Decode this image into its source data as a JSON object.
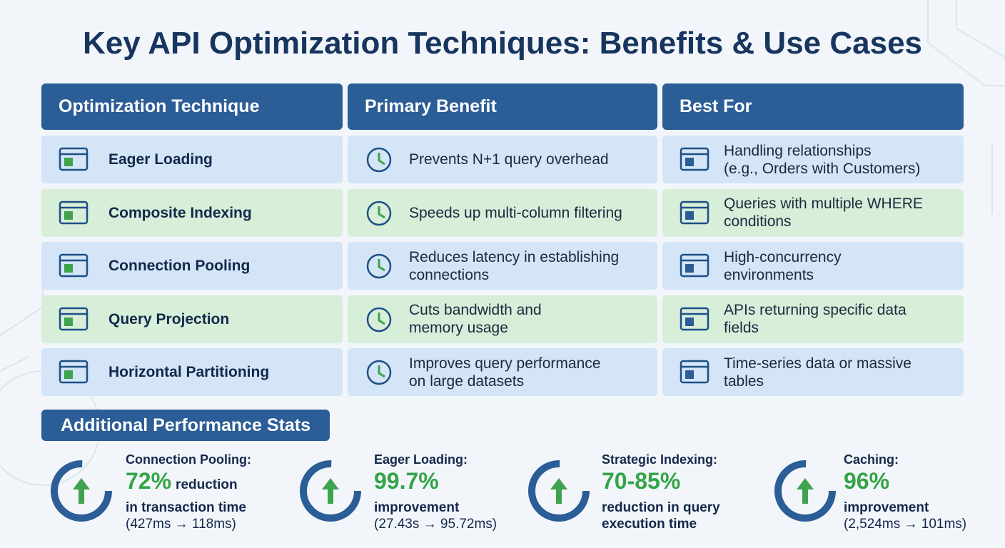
{
  "title": "Key API Optimization Techniques: Benefits & Use Cases",
  "table": {
    "headers": [
      "Optimization Technique",
      "Primary Benefit",
      "Best For"
    ],
    "rows": [
      {
        "technique": "Eager Loading",
        "benefit": [
          "Prevents N+1 query overhead"
        ],
        "best_for": [
          "Handling relationships",
          "(e.g., Orders with Customers)"
        ]
      },
      {
        "technique": "Composite Indexing",
        "benefit": [
          "Speeds up multi-column filtering"
        ],
        "best_for": [
          "Queries with multiple WHERE",
          "conditions"
        ]
      },
      {
        "technique": "Connection Pooling",
        "benefit": [
          "Reduces latency in establishing",
          "connections"
        ],
        "best_for": [
          "High-concurrency",
          "environments"
        ]
      },
      {
        "technique": "Query Projection",
        "benefit": [
          "Cuts bandwidth and",
          "memory usage"
        ],
        "best_for": [
          "APIs returning specific data",
          "fields"
        ]
      },
      {
        "technique": "Horizontal Partitioning",
        "benefit": [
          "Improves query performance",
          "on large datasets"
        ],
        "best_for": [
          "Time-series data or massive",
          "tables"
        ]
      }
    ]
  },
  "stats": {
    "title": "Additional Performance Stats",
    "items": [
      {
        "label": "Connection Pooling:",
        "value": "72%",
        "value_suffix": "reduction",
        "lines": [
          "in transaction time"
        ],
        "detail": "(427ms → 118ms)"
      },
      {
        "label": "Eager Loading:",
        "value": "99.7%",
        "lines": [
          "improvement"
        ],
        "detail": "(27.43s → 95.72ms)"
      },
      {
        "label": "Strategic Indexing:",
        "value": "70-85%",
        "lines": [
          "reduction in query",
          "execution time"
        ]
      },
      {
        "label": "Caching:",
        "value": "96%",
        "lines": [
          "improvement"
        ],
        "detail": "(2,524ms → 101ms)"
      }
    ]
  }
}
